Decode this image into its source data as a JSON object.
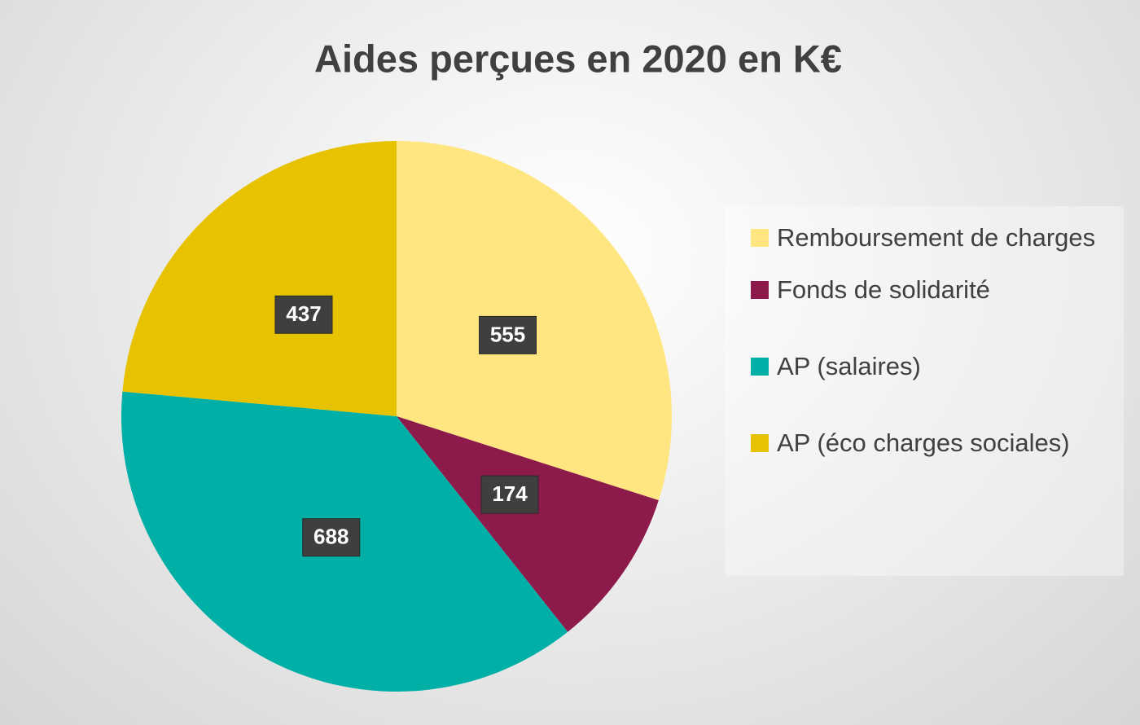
{
  "chart_data": {
    "type": "pie",
    "title": "Aides perçues en 2020 en K€",
    "categories": [
      "Remboursement de charges",
      "Fonds de solidarité",
      "AP (salaires)",
      "AP (éco charges sociales)"
    ],
    "values": [
      555,
      174,
      688,
      437
    ],
    "colors": [
      "#FFE680",
      "#8C1A4B",
      "#00AFA6",
      "#E6C200"
    ],
    "legend": "right"
  }
}
